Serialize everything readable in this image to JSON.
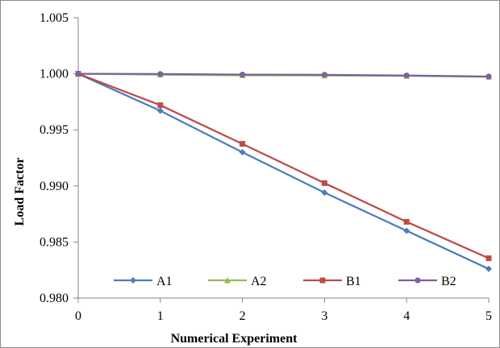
{
  "chart_data": {
    "type": "line",
    "title": "",
    "xlabel": "Numerical Experiment",
    "ylabel": "Load Factor",
    "x": [
      0,
      1,
      2,
      3,
      4,
      5
    ],
    "xlim": [
      0,
      5
    ],
    "ylim": [
      0.98,
      1.005
    ],
    "xticks": [
      "0",
      "1",
      "2",
      "3",
      "4",
      "5"
    ],
    "yticks": [
      "0.980",
      "0.985",
      "0.990",
      "0.995",
      "1.000",
      "1.005"
    ],
    "ytick_values": [
      0.98,
      0.985,
      0.99,
      0.995,
      1.0,
      1.005
    ],
    "grid": false,
    "legend_position": "bottom",
    "series": [
      {
        "name": "A1",
        "color": "#4a7ebb",
        "marker": "diamond",
        "values": [
          1.0,
          0.9967,
          0.993,
          0.9894,
          0.986,
          0.9826
        ]
      },
      {
        "name": "A2",
        "color": "#98b954",
        "marker": "triangle",
        "values": [
          1.0,
          0.99993,
          0.99986,
          0.99985,
          0.99982,
          0.99973
        ]
      },
      {
        "name": "B1",
        "color": "#be4b48",
        "marker": "square",
        "values": [
          1.0,
          0.9972,
          0.99375,
          0.99025,
          0.9868,
          0.98355
        ]
      },
      {
        "name": "B2",
        "color": "#7d60a0",
        "marker": "circle",
        "values": [
          1.0,
          0.99998,
          0.99993,
          0.99991,
          0.99985,
          0.99976
        ]
      }
    ]
  }
}
